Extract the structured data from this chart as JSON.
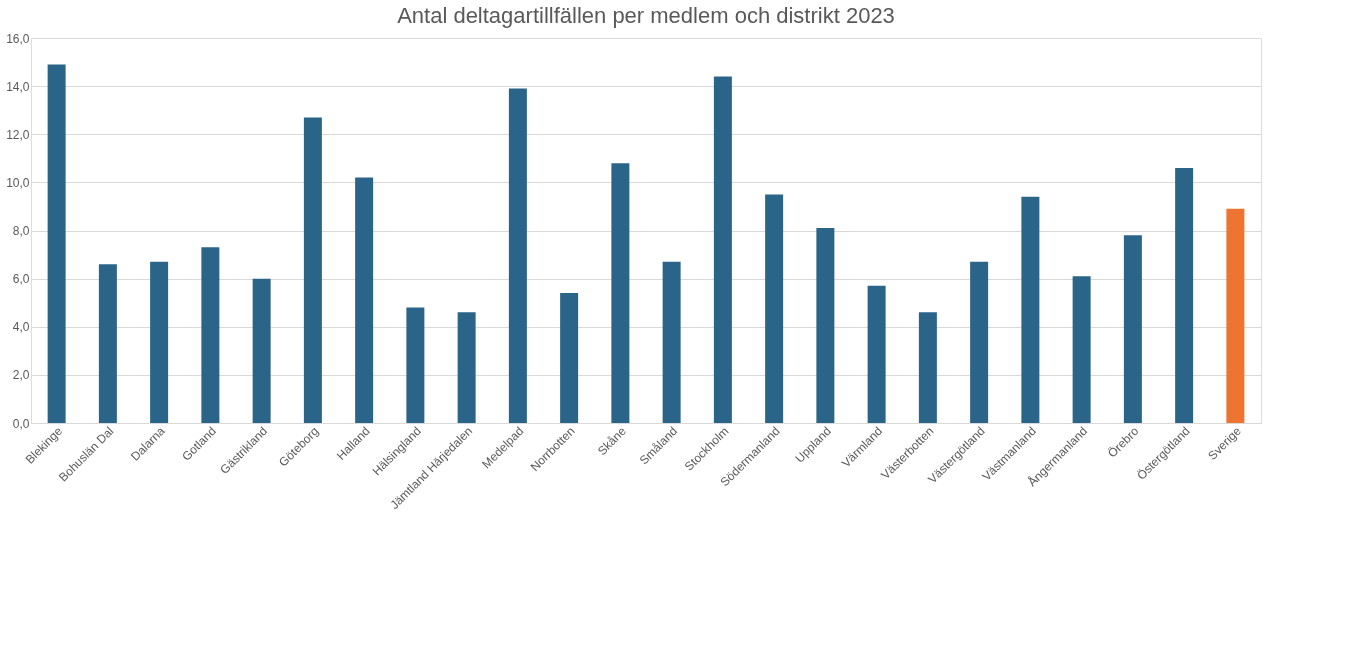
{
  "chart_data": {
    "type": "bar",
    "title": "Antal deltagartillfällen per medlem och distrikt 2023",
    "categories": [
      "Blekinge",
      "Bohuslän Dal",
      "Dalarna",
      "Gotland",
      "Gästrikland",
      "Göteborg",
      "Halland",
      "Hälsingland",
      "Jämtland Härjedalen",
      "Medelpad",
      "Norrbotten",
      "Skåne",
      "Småland",
      "Stockholm",
      "Södermanland",
      "Uppland",
      "Värmland",
      "Västerbotten",
      "Västergötland",
      "Västmanland",
      "Ångermanland",
      "Örebro",
      "Östergötland",
      "Sverige"
    ],
    "values": [
      14.9,
      6.6,
      6.7,
      7.3,
      6.0,
      12.7,
      10.2,
      4.8,
      4.6,
      13.9,
      5.4,
      10.8,
      6.7,
      14.4,
      9.5,
      8.1,
      5.7,
      4.6,
      6.7,
      9.4,
      6.1,
      7.8,
      10.6,
      8.9
    ],
    "colors": [
      "#2a6589",
      "#2a6589",
      "#2a6589",
      "#2a6589",
      "#2a6589",
      "#2a6589",
      "#2a6589",
      "#2a6589",
      "#2a6589",
      "#2a6589",
      "#2a6589",
      "#2a6589",
      "#2a6589",
      "#2a6589",
      "#2a6589",
      "#2a6589",
      "#2a6589",
      "#2a6589",
      "#2a6589",
      "#2a6589",
      "#2a6589",
      "#2a6589",
      "#2a6589",
      "#ee7431"
    ],
    "ylim": [
      0,
      16
    ],
    "yticks": [
      {
        "value": 0,
        "label": "0,0"
      },
      {
        "value": 2,
        "label": "2,0"
      },
      {
        "value": 4,
        "label": "4,0"
      },
      {
        "value": 6,
        "label": "6,0"
      },
      {
        "value": 8,
        "label": "8,0"
      },
      {
        "value": 10,
        "label": "10,0"
      },
      {
        "value": 12,
        "label": "12,0"
      },
      {
        "value": 14,
        "label": "14,0"
      },
      {
        "value": 16,
        "label": "16,0"
      }
    ],
    "grid": "y"
  }
}
